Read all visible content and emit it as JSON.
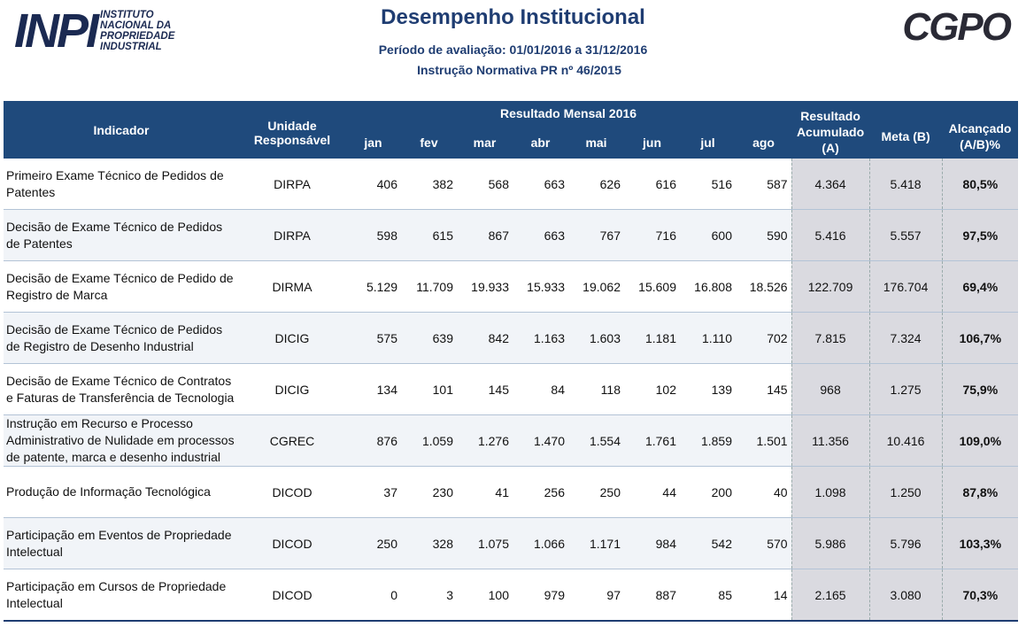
{
  "header": {
    "logo_left": {
      "mark": "INPI",
      "text": [
        "INSTITUTO",
        "NACIONAL DA",
        "PROPRIEDADE",
        "INDUSTRIAL"
      ]
    },
    "title": "Desempenho Institucional",
    "period": "Período de avaliação: 01/01/2016 a 31/12/2016",
    "norm": "Instrução Normativa PR nº 46/2015",
    "logo_right": "CGPO"
  },
  "table": {
    "headers": {
      "indicador": "Indicador",
      "unidade": "Unidade Responsável",
      "mensal": "Resultado Mensal 2016",
      "months": [
        "jan",
        "fev",
        "mar",
        "abr",
        "mai",
        "jun",
        "jul",
        "ago"
      ],
      "acumulado": "Resultado Acumulado (A)",
      "meta": "Meta (B)",
      "alcancado": "Alcançado (A/B)%"
    },
    "rows": [
      {
        "indicador": "Primeiro Exame Técnico de Pedidos de Patentes",
        "unidade": "DIRPA",
        "values": [
          "406",
          "382",
          "568",
          "663",
          "626",
          "616",
          "516",
          "587"
        ],
        "acumulado": "4.364",
        "meta": "5.418",
        "alcancado": "80,5%"
      },
      {
        "indicador": "Decisão de Exame Técnico de Pedidos de Patentes",
        "unidade": "DIRPA",
        "values": [
          "598",
          "615",
          "867",
          "663",
          "767",
          "716",
          "600",
          "590"
        ],
        "acumulado": "5.416",
        "meta": "5.557",
        "alcancado": "97,5%"
      },
      {
        "indicador": "Decisão de Exame Técnico de Pedido de Registro de Marca",
        "unidade": "DIRMA",
        "values": [
          "5.129",
          "11.709",
          "19.933",
          "15.933",
          "19.062",
          "15.609",
          "16.808",
          "18.526"
        ],
        "acumulado": "122.709",
        "meta": "176.704",
        "alcancado": "69,4%"
      },
      {
        "indicador": "Decisão de Exame Técnico de Pedidos de Registro de Desenho Industrial",
        "unidade": "DICIG",
        "values": [
          "575",
          "639",
          "842",
          "1.163",
          "1.603",
          "1.181",
          "1.110",
          "702"
        ],
        "acumulado": "7.815",
        "meta": "7.324",
        "alcancado": "106,7%"
      },
      {
        "indicador": "Decisão de Exame Técnico de Contratos e Faturas de Transferência de Tecnologia",
        "unidade": "DICIG",
        "values": [
          "134",
          "101",
          "145",
          "84",
          "118",
          "102",
          "139",
          "145"
        ],
        "acumulado": "968",
        "meta": "1.275",
        "alcancado": "75,9%"
      },
      {
        "indicador": "Instrução em Recurso e Processo Administrativo de Nulidade em processos de patente, marca e desenho industrial",
        "unidade": "CGREC",
        "values": [
          "876",
          "1.059",
          "1.276",
          "1.470",
          "1.554",
          "1.761",
          "1.859",
          "1.501"
        ],
        "acumulado": "11.356",
        "meta": "10.416",
        "alcancado": "109,0%"
      },
      {
        "indicador": "Produção de Informação Tecnológica",
        "unidade": "DICOD",
        "values": [
          "37",
          "230",
          "41",
          "256",
          "250",
          "44",
          "200",
          "40"
        ],
        "acumulado": "1.098",
        "meta": "1.250",
        "alcancado": "87,8%"
      },
      {
        "indicador": "Participação em Eventos de Propriedade Intelectual",
        "unidade": "DICOD",
        "values": [
          "250",
          "328",
          "1.075",
          "1.066",
          "1.171",
          "984",
          "542",
          "570"
        ],
        "acumulado": "5.986",
        "meta": "5.796",
        "alcancado": "103,3%"
      },
      {
        "indicador": "Participação em Cursos de Propriedade Intelectual",
        "unidade": "DICOD",
        "values": [
          "0",
          "3",
          "100",
          "979",
          "97",
          "887",
          "85",
          "14"
        ],
        "acumulado": "2.165",
        "meta": "3.080",
        "alcancado": "70,3%"
      }
    ]
  }
}
